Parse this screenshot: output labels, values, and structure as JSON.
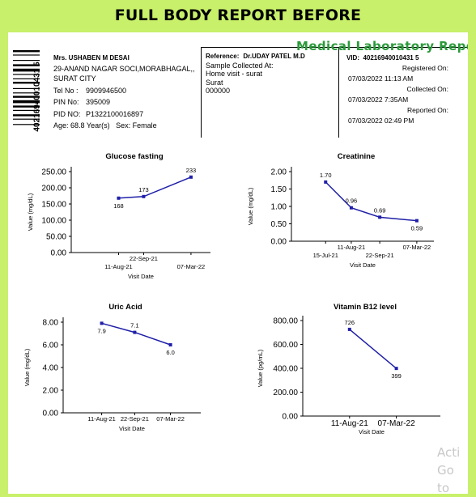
{
  "banner": {
    "title": "FULL BODY REPORT BEFORE"
  },
  "barcode": {
    "number": "40216940010431 5"
  },
  "patient": {
    "name": "Mrs. USHABEN M DESAI",
    "address_line1": "29-ANAND NAGAR SOCI,MORABHAGAL,,",
    "address_line2": "SURAT CITY",
    "tel_label": "Tel No :",
    "tel": "9909946500",
    "pin_label": "PIN No:",
    "pin": "395009",
    "pid_label": "PID NO:",
    "pid": "P1322100016897",
    "age_label": "Age:",
    "age": "68.8 Year(s)",
    "sex_label": "Sex:",
    "sex": "Female"
  },
  "reference": {
    "label": "Reference:",
    "doctor": "Dr.UDAY PATEL M.D",
    "collected_label": "Sample Collected At:",
    "collected_line1": "Home visit - surat",
    "collected_line2": "Surat",
    "collected_line3": "000000"
  },
  "lab": {
    "title": "Medical Laboratory Report",
    "vid_label": "VID:",
    "vid": "40216940010431 5",
    "registered_label": "Registered On:",
    "registered": "07/03/2022 11:13 AM",
    "collected_label": "Collected On:",
    "collected": "07/03/2022 7:35AM",
    "reported_label": "Reported On:",
    "reported": "07/03/2022 02:49 PM"
  },
  "watermark": {
    "line1": "Acti",
    "line2": "Go to"
  },
  "chart_data": [
    {
      "type": "line",
      "title": "Glucose fasting",
      "xlabel": "Visit Date",
      "ylabel": "Value (mg/dL)",
      "ylim": [
        0,
        250
      ],
      "yticks": [
        "0.00",
        "50.00",
        "100.00",
        "150.00",
        "200.00",
        "250.00"
      ],
      "x": [
        "11-Aug-21",
        "22-Sep-21",
        "07-Mar-22"
      ],
      "values": [
        168,
        173,
        233
      ],
      "labels": [
        "168",
        "173",
        "233"
      ],
      "color": "#1f1fa8"
    },
    {
      "type": "line",
      "title": "Creatinine",
      "xlabel": "Visit Date",
      "ylabel": "Value (mg/dL)",
      "ylim": [
        0,
        2
      ],
      "yticks": [
        "0.00",
        "0.50",
        "1.00",
        "1.50",
        "2.00"
      ],
      "x": [
        "15-Jul-21",
        "11-Aug-21",
        "22-Sep-21",
        "07-Mar-22"
      ],
      "values": [
        1.7,
        0.96,
        0.69,
        0.59
      ],
      "labels": [
        "1.70",
        "0.96",
        "0.69",
        "0.59"
      ],
      "color": "#1f1fa8"
    },
    {
      "type": "line",
      "title": "Uric Acid",
      "xlabel": "Visit Date",
      "ylabel": "Value (mg/dL)",
      "ylim": [
        0,
        8
      ],
      "yticks": [
        "0.00",
        "2.00",
        "4.00",
        "6.00",
        "8.00"
      ],
      "x": [
        "11-Aug-21",
        "22-Sep-21",
        "07-Mar-22"
      ],
      "values": [
        7.9,
        7.1,
        6.0
      ],
      "labels": [
        "7.9",
        "7.1",
        "6.0"
      ],
      "color": "#1f1fa8"
    },
    {
      "type": "line",
      "title": "Vitamin B12 level",
      "xlabel": "Visit Date",
      "ylabel": "Value (pg/mL)",
      "ylim": [
        0,
        800
      ],
      "yticks": [
        "0.00",
        "200.00",
        "400.00",
        "600.00",
        "800.00"
      ],
      "x": [
        "11-Aug-21",
        "07-Mar-22"
      ],
      "values": [
        726,
        399
      ],
      "labels": [
        "726",
        "399"
      ],
      "color": "#1f1fa8"
    }
  ]
}
